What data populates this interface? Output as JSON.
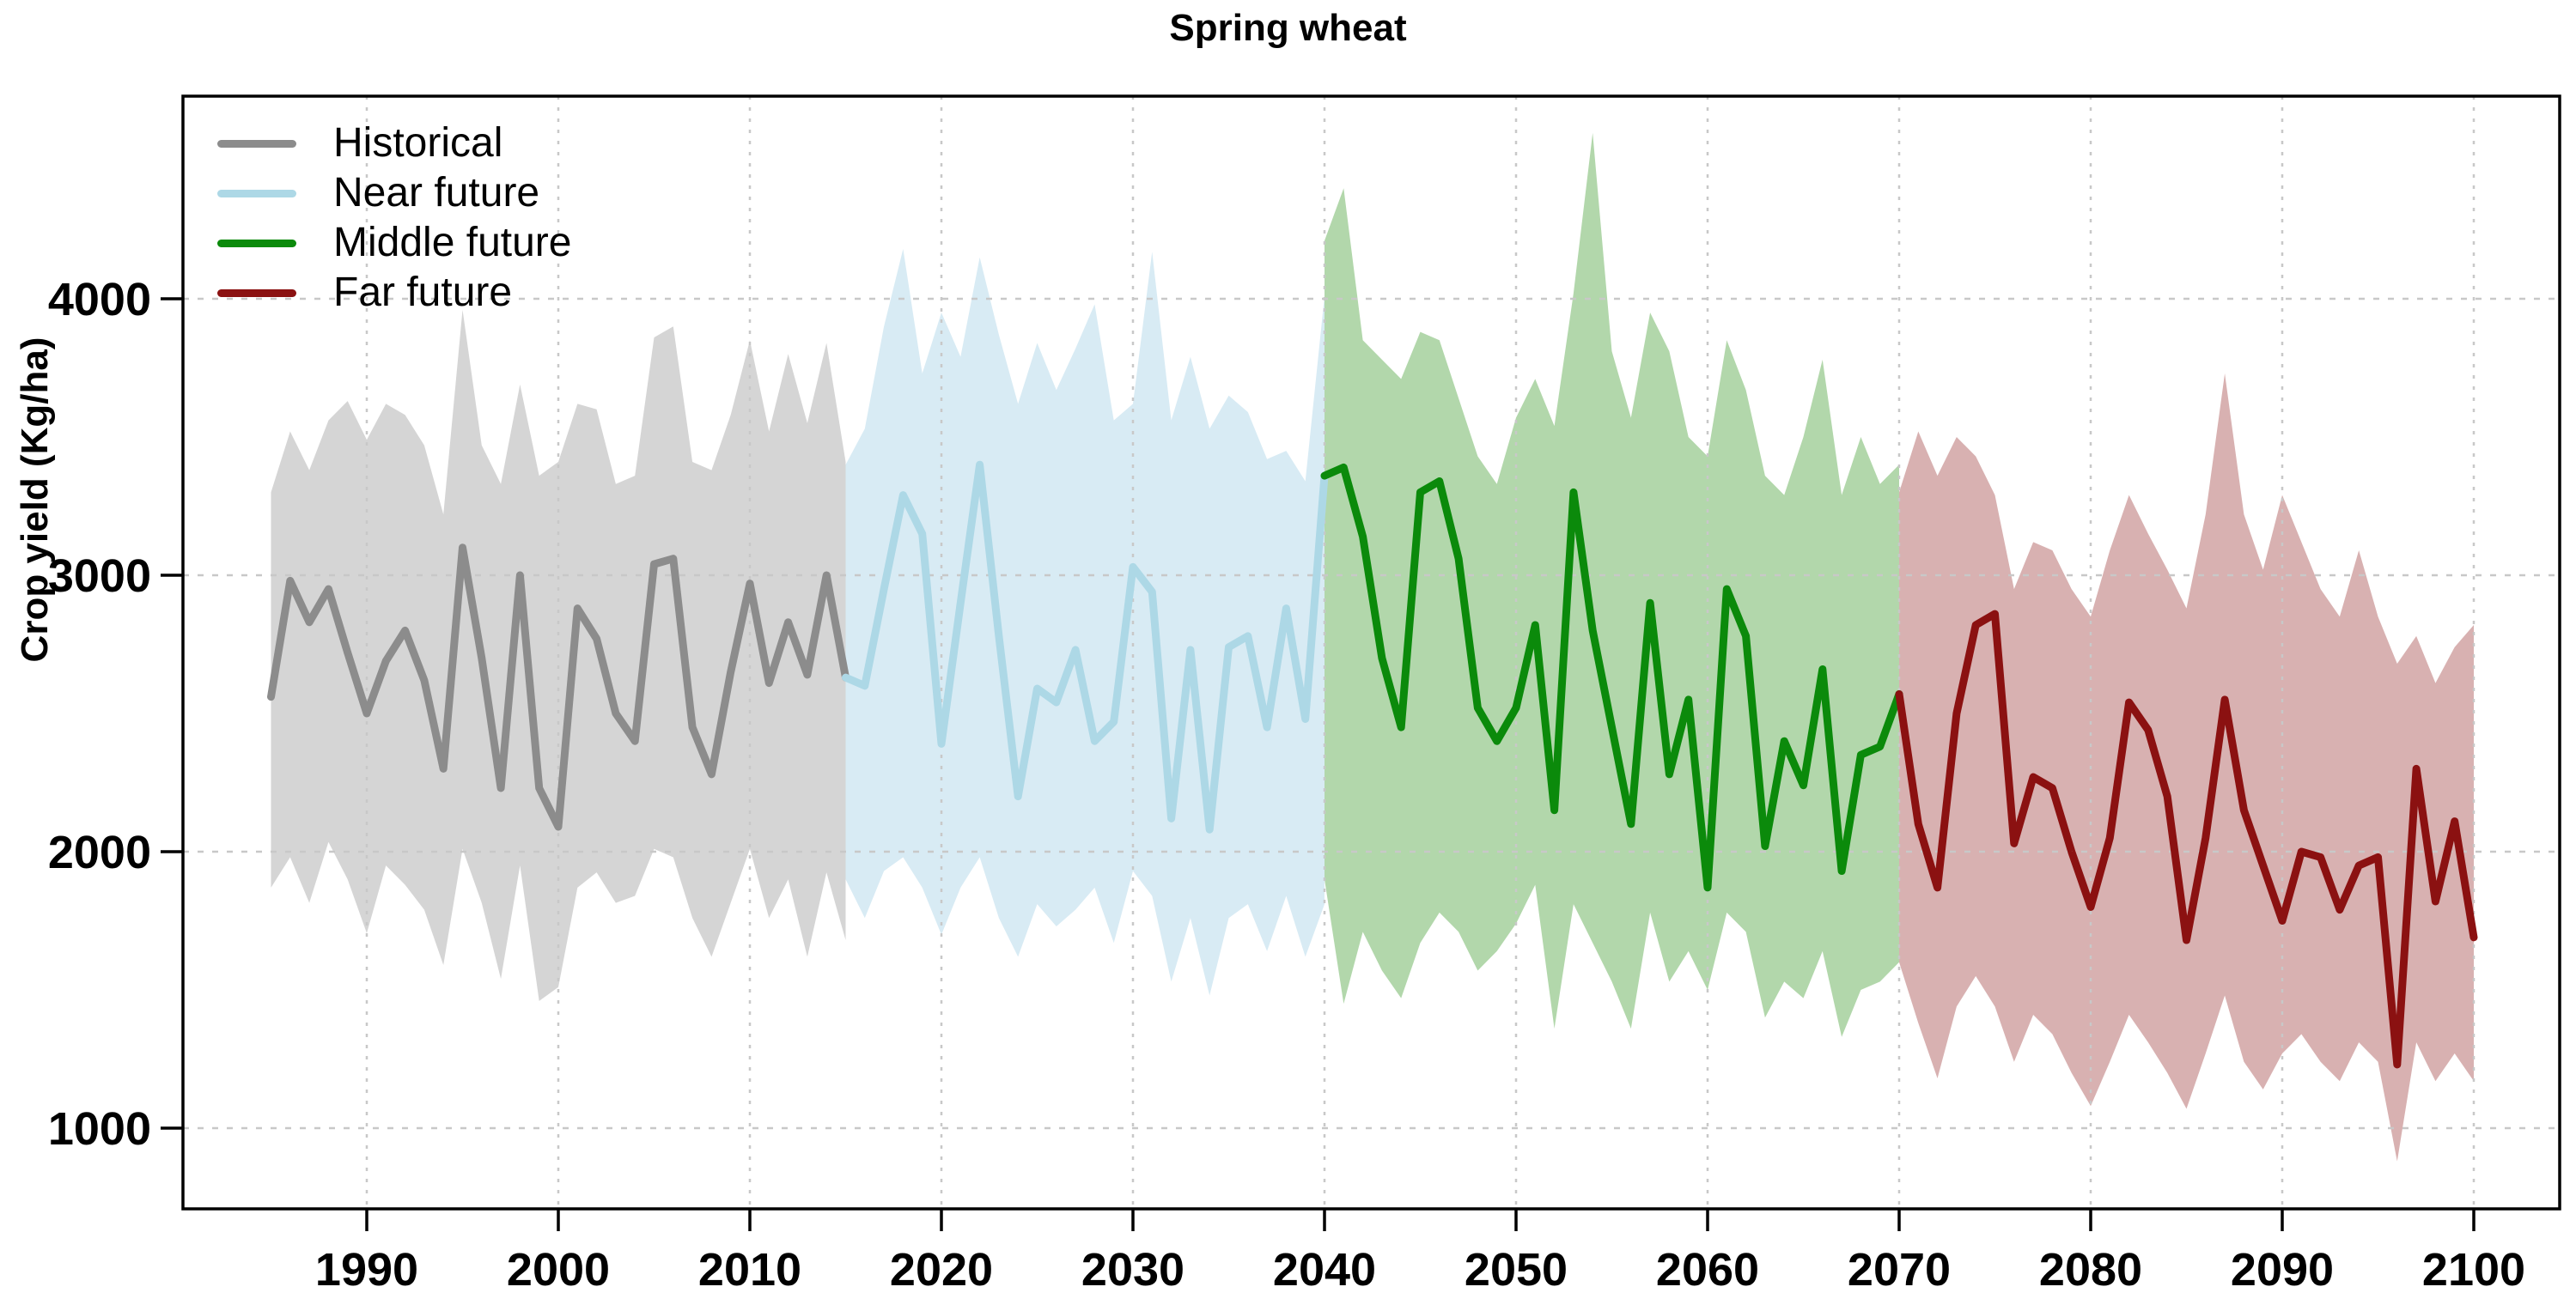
{
  "title": "Spring wheat",
  "y_axis": {
    "label": "Crop yield (Kg/ha)",
    "ticks": [
      1000,
      2000,
      3000,
      4000
    ]
  },
  "x_axis": {
    "ticks": [
      1990,
      2000,
      2010,
      2020,
      2030,
      2040,
      2050,
      2060,
      2070,
      2080,
      2090,
      2100
    ]
  },
  "legend": {
    "position": "top-left",
    "items": [
      {
        "label": "Historical",
        "color": "#8C8C8C"
      },
      {
        "label": "Near future",
        "color": "#ADD8E6"
      },
      {
        "label": "Middle future",
        "color": "#0B8A0B"
      },
      {
        "label": "Far future",
        "color": "#8B1111"
      }
    ]
  },
  "colors": {
    "background": "#FFFFFF",
    "axis": "#000000",
    "gridline": "#C8C8C8"
  },
  "chart_data": {
    "type": "line",
    "title": "Spring wheat",
    "xlabel": "",
    "ylabel": "Crop yield (Kg/ha)",
    "xlim": [
      1980.5,
      2104.5
    ],
    "ylim": [
      710,
      4730
    ],
    "grid": "dotted, gray, at decade years and each 1000 kg/ha",
    "legend_position": "top-left",
    "note": "Each series is an annual mean line with a shaded min-max envelope band",
    "series": [
      {
        "name": "Historical",
        "start_year": 1985,
        "line_color": "#8C8C8C",
        "band_color": "#D5D5D5",
        "mean": [
          2560,
          2980,
          2830,
          2950,
          2720,
          2500,
          2690,
          2800,
          2620,
          2300,
          3100,
          2700,
          2230,
          3000,
          2230,
          2090,
          2880,
          2770,
          2500,
          2400,
          3040,
          3060,
          2450,
          2280,
          2650,
          2970,
          2610,
          2830,
          2640,
          3000,
          2630
        ],
        "upper": [
          3300,
          3520,
          3380,
          3560,
          3630,
          3490,
          3620,
          3580,
          3470,
          3220,
          3960,
          3470,
          3330,
          3690,
          3360,
          3410,
          3620,
          3600,
          3330,
          3360,
          3860,
          3900,
          3410,
          3380,
          3580,
          3850,
          3520,
          3800,
          3550,
          3840,
          3410
        ],
        "lower": [
          1870,
          1980,
          1815,
          2035,
          1900,
          1705,
          1950,
          1880,
          1790,
          1590,
          2010,
          1815,
          1540,
          1950,
          1460,
          1510,
          1870,
          1925,
          1815,
          1840,
          2010,
          1980,
          1760,
          1620,
          1815,
          2010,
          1760,
          1900,
          1620,
          1925,
          1680
        ]
      },
      {
        "name": "Near future",
        "start_year": 2015,
        "line_color": "#ADD8E6",
        "band_color": "#D8EBF4",
        "mean": [
          2630,
          2600,
          2950,
          3290,
          3150,
          2390,
          2900,
          3400,
          2780,
          2200,
          2590,
          2540,
          2730,
          2400,
          2470,
          3030,
          2940,
          2120,
          2730,
          2080,
          2740,
          2780,
          2450,
          2880,
          2480,
          3360
        ],
        "upper": [
          3400,
          3530,
          3900,
          4180,
          3730,
          3950,
          3790,
          4150,
          3870,
          3620,
          3840,
          3670,
          3820,
          3980,
          3560,
          3620,
          4170,
          3560,
          3790,
          3530,
          3650,
          3590,
          3420,
          3450,
          3340,
          4010
        ],
        "lower": [
          1900,
          1760,
          1930,
          1980,
          1870,
          1700,
          1870,
          1980,
          1760,
          1620,
          1810,
          1730,
          1790,
          1870,
          1670,
          1930,
          1840,
          1530,
          1760,
          1480,
          1760,
          1810,
          1640,
          1840,
          1620,
          1810
        ]
      },
      {
        "name": "Middle future",
        "start_year": 2040,
        "line_color": "#0B8A0B",
        "band_color": "#B2D7AB",
        "mean": [
          3360,
          3390,
          3140,
          2700,
          2450,
          3300,
          3340,
          3060,
          2520,
          2400,
          2520,
          2820,
          2150,
          3300,
          2800,
          2450,
          2100,
          2900,
          2280,
          2550,
          1870,
          2950,
          2780,
          2020,
          2400,
          2240,
          2660,
          1930,
          2350,
          2380,
          2570
        ],
        "upper": [
          4210,
          4400,
          3850,
          3780,
          3710,
          3880,
          3850,
          3640,
          3430,
          3330,
          3570,
          3710,
          3540,
          4020,
          4600,
          3810,
          3570,
          3950,
          3810,
          3500,
          3430,
          3850,
          3670,
          3360,
          3290,
          3500,
          3780,
          3290,
          3500,
          3330,
          3400
        ],
        "lower": [
          1900,
          1450,
          1710,
          1570,
          1470,
          1670,
          1780,
          1710,
          1570,
          1640,
          1740,
          1880,
          1360,
          1810,
          1670,
          1530,
          1360,
          1780,
          1530,
          1640,
          1500,
          1780,
          1710,
          1400,
          1530,
          1470,
          1640,
          1330,
          1500,
          1530,
          1600
        ]
      },
      {
        "name": "Far future",
        "start_year": 2070,
        "line_color": "#8B1111",
        "band_color": "#D8B1B1",
        "mean": [
          2570,
          2100,
          1870,
          2500,
          2820,
          2860,
          2030,
          2270,
          2230,
          2000,
          1800,
          2050,
          2540,
          2440,
          2200,
          1680,
          2050,
          2550,
          2150,
          1950,
          1750,
          2000,
          1980,
          1790,
          1950,
          1980,
          1230,
          2300,
          1820,
          2110,
          1690
        ],
        "upper": [
          3300,
          3520,
          3360,
          3500,
          3430,
          3290,
          2950,
          3120,
          3090,
          2950,
          2850,
          3090,
          3290,
          3150,
          3020,
          2880,
          3220,
          3730,
          3220,
          3020,
          3290,
          3120,
          2950,
          2850,
          3090,
          2850,
          2680,
          2780,
          2610,
          2740,
          2820
        ],
        "lower": [
          1600,
          1380,
          1180,
          1440,
          1550,
          1440,
          1240,
          1410,
          1340,
          1200,
          1080,
          1240,
          1410,
          1310,
          1200,
          1070,
          1270,
          1480,
          1240,
          1140,
          1270,
          1340,
          1240,
          1170,
          1310,
          1240,
          880,
          1310,
          1170,
          1270,
          1170
        ]
      }
    ]
  }
}
